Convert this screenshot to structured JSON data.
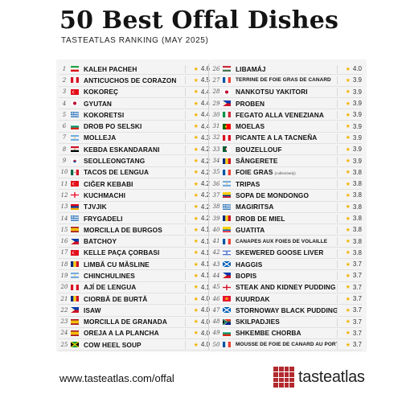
{
  "header": {
    "title": "50 Best Offal Dishes",
    "subtitle": "TASTEATLAS RANKING (MAY 2025)"
  },
  "footer": {
    "url": "www.tasteatlas.com/offal",
    "logo_text": "tasteatlas",
    "logo_color": "#b22a2e"
  },
  "accent": {
    "star_color": "#f2b400"
  },
  "dishes": [
    {
      "rank": "1",
      "name": "KALEH PACHEH",
      "rating": "4.6",
      "flag": "iran"
    },
    {
      "rank": "2",
      "name": "ANTICUCHOS DE CORAZON",
      "rating": "4.5",
      "flag": "peru"
    },
    {
      "rank": "3",
      "name": "KOKOREÇ",
      "rating": "4.4",
      "flag": "turkey"
    },
    {
      "rank": "4",
      "name": "GYUTAN",
      "rating": "4.4",
      "flag": "japan"
    },
    {
      "rank": "5",
      "name": "KOKORETSI",
      "rating": "4.4",
      "flag": "greece"
    },
    {
      "rank": "6",
      "name": "DROB PO SELSKI",
      "rating": "4.4",
      "flag": "bulgaria"
    },
    {
      "rank": "7",
      "name": "MOLLEJA",
      "rating": "4.3",
      "flag": "argentina"
    },
    {
      "rank": "8",
      "name": "KEBDA ESKANDARANI",
      "rating": "4.2",
      "flag": "egypt"
    },
    {
      "rank": "9",
      "name": "SEOLLEONGTANG",
      "rating": "4.2",
      "flag": "korea"
    },
    {
      "rank": "10",
      "name": "TACOS DE LENGUA",
      "rating": "4.2",
      "flag": "mexico"
    },
    {
      "rank": "11",
      "name": "CIĞER KEBABI",
      "rating": "4.2",
      "flag": "turkey"
    },
    {
      "rank": "12",
      "name": "KUCHMACHI",
      "rating": "4.2",
      "flag": "georgia"
    },
    {
      "rank": "13",
      "name": "TJVJIK",
      "rating": "4.2",
      "flag": "armenia"
    },
    {
      "rank": "14",
      "name": "FRYGADELI",
      "rating": "4.2",
      "flag": "greece"
    },
    {
      "rank": "15",
      "name": "MORCILLA DE BURGOS",
      "rating": "4.1",
      "flag": "spain"
    },
    {
      "rank": "16",
      "name": "BATCHOY",
      "rating": "4.1",
      "flag": "philippines"
    },
    {
      "rank": "17",
      "name": "KELLE PAÇA ÇORBASI",
      "rating": "4.1",
      "flag": "turkey"
    },
    {
      "rank": "18",
      "name": "LIMBĂ CU MĂSLINE",
      "rating": "4.1",
      "flag": "romania"
    },
    {
      "rank": "19",
      "name": "CHINCHULINES",
      "rating": "4.1",
      "flag": "argentina"
    },
    {
      "rank": "20",
      "name": "AJÍ DE LENGUA",
      "rating": "4.1",
      "flag": "peru"
    },
    {
      "rank": "21",
      "name": "CIORBĂ DE BURTĂ",
      "rating": "4.0",
      "flag": "romania"
    },
    {
      "rank": "22",
      "name": "ISAW",
      "rating": "4.0",
      "flag": "philippines"
    },
    {
      "rank": "23",
      "name": "MORCILLA DE GRANADA",
      "rating": "4.0",
      "flag": "spain"
    },
    {
      "rank": "24",
      "name": "OREJA A LA PLANCHA",
      "rating": "4.0",
      "flag": "spain"
    },
    {
      "rank": "25",
      "name": "COW HEEL SOUP",
      "rating": "4.0",
      "flag": "jamaica"
    },
    {
      "rank": "26",
      "name": "LIBAMÁJ",
      "rating": "4.0",
      "flag": "hungary"
    },
    {
      "rank": "27",
      "name": "TERRINE DE FOIE GRAS DE CANARD",
      "rating": "3.9",
      "flag": "france",
      "small": true
    },
    {
      "rank": "28",
      "name": "NANKOTSU YAKITORI",
      "rating": "3.9",
      "flag": "japan"
    },
    {
      "rank": "29",
      "name": "PROBEN",
      "rating": "3.9",
      "flag": "philippines"
    },
    {
      "rank": "30",
      "name": "FEGATO ALLA VENEZIANA",
      "rating": "3.9",
      "flag": "italy"
    },
    {
      "rank": "31",
      "name": "MOELAS",
      "rating": "3.9",
      "flag": "portugal"
    },
    {
      "rank": "32",
      "name": "PICANTE A LA TACNEÑA",
      "rating": "3.9",
      "flag": "peru"
    },
    {
      "rank": "33",
      "name": "BOUZELLOUF",
      "rating": "3.9",
      "flag": "algeria"
    },
    {
      "rank": "34",
      "name": "SÂNGERETE",
      "rating": "3.9",
      "flag": "romania"
    },
    {
      "rank": "35",
      "name": "FOIE GRAS",
      "note": "(collectively)",
      "rating": "3.8",
      "flag": "france"
    },
    {
      "rank": "36",
      "name": "TRIPAS",
      "rating": "3.8",
      "flag": "argentina"
    },
    {
      "rank": "37",
      "name": "SOPA DE MONDONGO",
      "rating": "3.8",
      "flag": "colombia"
    },
    {
      "rank": "38",
      "name": "MAGIRITSA",
      "rating": "3.8",
      "flag": "greece"
    },
    {
      "rank": "39",
      "name": "DROB DE MIEL",
      "rating": "3.8",
      "flag": "romania"
    },
    {
      "rank": "40",
      "name": "GUATITA",
      "rating": "3.8",
      "flag": "ecuador"
    },
    {
      "rank": "41",
      "name": "CANAPÉS AUX FOIES DE VOLAILLE",
      "rating": "3.8",
      "flag": "france",
      "small": true
    },
    {
      "rank": "42",
      "name": "SKEWERED GOOSE LIVER",
      "rating": "3.8",
      "flag": "israel"
    },
    {
      "rank": "43",
      "name": "HAGGIS",
      "rating": "3.7",
      "flag": "scotland"
    },
    {
      "rank": "44",
      "name": "BOPIS",
      "rating": "3.7",
      "flag": "philippines"
    },
    {
      "rank": "45",
      "name": "STEAK AND KIDNEY PUDDING",
      "rating": "3.7",
      "flag": "england"
    },
    {
      "rank": "46",
      "name": "KUURDAK",
      "rating": "3.7",
      "flag": "kyrgyzstan"
    },
    {
      "rank": "47",
      "name": "STORNOWAY BLACK PUDDING",
      "rating": "3.7",
      "flag": "scotland"
    },
    {
      "rank": "48",
      "name": "SKILPADJIES",
      "rating": "3.7",
      "flag": "southafrica"
    },
    {
      "rank": "49",
      "name": "SHKEMBE CHORBA",
      "rating": "3.7",
      "flag": "bulgaria"
    },
    {
      "rank": "50",
      "name": "MOUSSE DE FOIE DE CANARD AU PORTO",
      "rating": "3.7",
      "flag": "france",
      "small": true
    }
  ]
}
